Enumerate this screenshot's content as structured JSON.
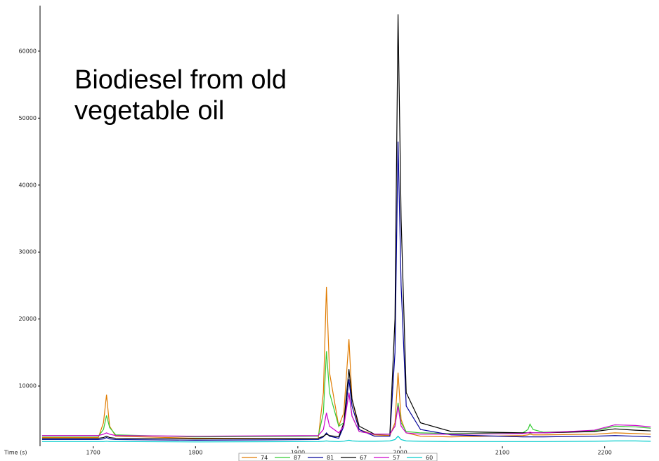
{
  "chart_data": {
    "type": "line",
    "annotation": "Biodiesel from old vegetable oil",
    "xlabel": "Time (s)",
    "x": [
      1650,
      1705,
      1710,
      1713,
      1716,
      1722,
      1800,
      1920,
      1925,
      1928,
      1931,
      1940,
      1945,
      1950,
      1953,
      1960,
      1975,
      1990,
      1995,
      1998,
      2001,
      2006,
      2020,
      2050,
      2120,
      2125,
      2127,
      2130,
      2140,
      2190,
      2210,
      2230,
      2245
    ],
    "series": [
      {
        "name": "74",
        "color": "#e07b00",
        "values": [
          2300,
          2300,
          4500,
          8700,
          4000,
          2500,
          2200,
          2200,
          9000,
          24800,
          12000,
          4000,
          6000,
          17000,
          8000,
          3500,
          2700,
          2600,
          4500,
          12000,
          5000,
          3000,
          2500,
          2400,
          2600,
          2700,
          2800,
          2700,
          2700,
          2800,
          3000,
          2900,
          2800
        ]
      },
      {
        "name": "87",
        "color": "#33cc33",
        "values": [
          2500,
          2500,
          3500,
          5600,
          3800,
          2700,
          2400,
          2500,
          6000,
          15200,
          9000,
          4000,
          4500,
          9000,
          5500,
          3200,
          2800,
          2800,
          4000,
          7500,
          4500,
          3200,
          3000,
          2900,
          3000,
          3500,
          4300,
          3500,
          3100,
          3300,
          4000,
          3900,
          3700
        ]
      },
      {
        "name": "81",
        "color": "#000099",
        "values": [
          2000,
          2000,
          2100,
          2300,
          2100,
          2000,
          1900,
          2000,
          2400,
          3000,
          2500,
          2200,
          4000,
          11000,
          7000,
          3500,
          2500,
          2500,
          15000,
          46500,
          25000,
          7000,
          3500,
          2700,
          2400,
          2400,
          2400,
          2400,
          2400,
          2500,
          2600,
          2500,
          2400
        ]
      },
      {
        "name": "67",
        "color": "#000000",
        "values": [
          2200,
          2200,
          2300,
          2500,
          2300,
          2200,
          2100,
          2200,
          2500,
          2800,
          2600,
          2400,
          4500,
          12500,
          8000,
          4000,
          2800,
          2800,
          20000,
          65500,
          35000,
          9000,
          4500,
          3200,
          3000,
          3000,
          3000,
          3000,
          3000,
          3200,
          3600,
          3400,
          3300
        ]
      },
      {
        "name": "57",
        "color": "#cc00cc",
        "values": [
          2600,
          2600,
          2800,
          3000,
          2800,
          2600,
          2500,
          2600,
          3500,
          6000,
          4000,
          3000,
          4000,
          9000,
          5500,
          3200,
          2800,
          2800,
          4000,
          7000,
          4000,
          3000,
          2800,
          2800,
          2900,
          3000,
          3100,
          3000,
          3000,
          3400,
          4200,
          4100,
          3900
        ]
      },
      {
        "name": "60",
        "color": "#00cccc",
        "values": [
          1700,
          1700,
          1700,
          1750,
          1700,
          1700,
          1650,
          1700,
          1750,
          1800,
          1750,
          1700,
          1750,
          1900,
          1800,
          1750,
          1750,
          1800,
          2000,
          2500,
          2000,
          1800,
          1750,
          1700,
          1700,
          1700,
          1700,
          1700,
          1700,
          1750,
          1800,
          1800,
          1750
        ]
      }
    ],
    "xlim": [
      1648,
      2249
    ],
    "xticks": [
      1700,
      1800,
      1900,
      2000,
      2100,
      2200
    ],
    "ylim": [
      1000,
      66800
    ],
    "yticks": [
      10000,
      20000,
      30000,
      40000,
      50000,
      60000
    ],
    "grid": false,
    "legend": "bottom"
  }
}
